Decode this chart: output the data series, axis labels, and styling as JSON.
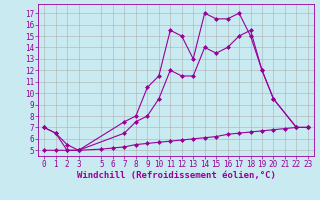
{
  "background_color": "#c8eaf0",
  "grid_color": "#b0b0b0",
  "line_color": "#990099",
  "marker": "D",
  "markersize": 2.0,
  "linewidth": 0.8,
  "xlabel": "Windchill (Refroidissement éolien,°C)",
  "xlabel_fontsize": 6.5,
  "tick_fontsize": 5.5,
  "ylim": [
    4.5,
    17.8
  ],
  "xlim": [
    -0.5,
    23.5
  ],
  "yticks": [
    5,
    6,
    7,
    8,
    9,
    10,
    11,
    12,
    13,
    14,
    15,
    16,
    17
  ],
  "xticks": [
    0,
    1,
    2,
    3,
    5,
    6,
    7,
    8,
    9,
    10,
    11,
    12,
    13,
    14,
    15,
    16,
    17,
    18,
    19,
    20,
    21,
    22,
    23
  ],
  "series": [
    {
      "x": [
        0,
        1,
        2,
        3,
        7,
        8,
        9,
        10,
        11,
        12,
        13,
        14,
        15,
        16,
        17,
        18,
        19,
        20,
        22,
        23
      ],
      "y": [
        7.0,
        6.5,
        5.0,
        5.0,
        7.5,
        8.0,
        10.5,
        11.5,
        15.5,
        15.0,
        13.0,
        17.0,
        16.5,
        16.5,
        17.0,
        15.0,
        12.0,
        9.5,
        7.0,
        7.0
      ]
    },
    {
      "x": [
        0,
        1,
        2,
        3,
        7,
        8,
        9,
        10,
        11,
        12,
        13,
        14,
        15,
        16,
        17,
        18,
        19,
        20,
        22,
        23
      ],
      "y": [
        7.0,
        6.5,
        5.5,
        5.0,
        6.5,
        7.5,
        8.0,
        9.5,
        12.0,
        11.5,
        11.5,
        14.0,
        13.5,
        14.0,
        15.0,
        15.5,
        12.0,
        9.5,
        7.0,
        7.0
      ]
    },
    {
      "x": [
        0,
        1,
        2,
        3,
        5,
        6,
        7,
        8,
        9,
        10,
        11,
        12,
        13,
        14,
        15,
        16,
        17,
        18,
        19,
        20,
        21,
        22,
        23
      ],
      "y": [
        5.0,
        5.0,
        5.0,
        5.0,
        5.1,
        5.2,
        5.3,
        5.5,
        5.6,
        5.7,
        5.8,
        5.9,
        6.0,
        6.1,
        6.2,
        6.4,
        6.5,
        6.6,
        6.7,
        6.8,
        6.9,
        7.0,
        7.0
      ]
    }
  ]
}
